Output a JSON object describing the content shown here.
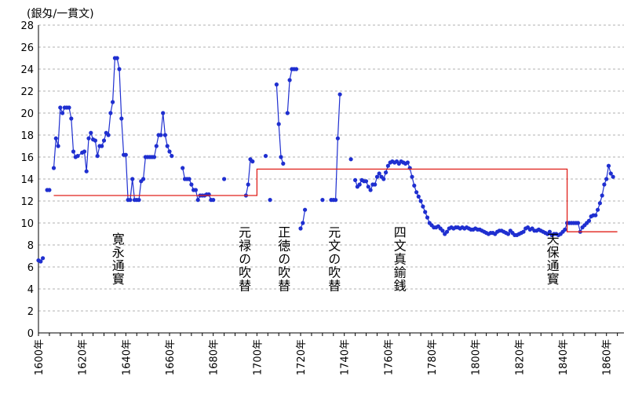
{
  "chart_data": {
    "type": "line",
    "title": "",
    "xlabel": "",
    "ylabel": "(銀匁/一貫文)",
    "xlim": [
      1600,
      1868
    ],
    "ylim": [
      0,
      28
    ],
    "yticks": [
      0,
      2,
      4,
      6,
      8,
      10,
      12,
      14,
      16,
      18,
      20,
      22,
      24,
      26,
      28
    ],
    "xticks": [
      "1600年",
      "1620年",
      "1640年",
      "1660年",
      "1680年",
      "1700年",
      "1720年",
      "1740年",
      "1760年",
      "1780年",
      "1800年",
      "1820年",
      "1840年",
      "1860年"
    ],
    "grid": true,
    "colors": {
      "market": "#1f2fd0",
      "official": "#e0201a",
      "grid": "#b0b0b0"
    },
    "series": [
      {
        "style": "line-markers",
        "color": "#1f2fd0",
        "segments": [
          [
            [
              1600,
              6.6
            ],
            [
              1601,
              6.5
            ],
            [
              1602,
              6.8
            ]
          ],
          [
            [
              1604,
              13.0
            ],
            [
              1605,
              13.0
            ]
          ],
          [
            [
              1607,
              15.0
            ],
            [
              1608,
              17.7
            ],
            [
              1609,
              17.0
            ],
            [
              1610,
              20.5
            ],
            [
              1611,
              20.0
            ],
            [
              1612,
              20.5
            ],
            [
              1613,
              20.5
            ],
            [
              1614,
              20.5
            ],
            [
              1615,
              19.5
            ],
            [
              1616,
              16.5
            ],
            [
              1617,
              16.0
            ],
            [
              1618,
              16.1
            ],
            [
              1620,
              16.4
            ],
            [
              1621,
              16.5
            ],
            [
              1622,
              14.7
            ],
            [
              1623,
              17.7
            ],
            [
              1624,
              18.2
            ],
            [
              1625,
              17.6
            ],
            [
              1626,
              17.5
            ],
            [
              1627,
              16.1
            ],
            [
              1628,
              17.0
            ],
            [
              1629,
              17.0
            ],
            [
              1630,
              17.5
            ],
            [
              1631,
              18.2
            ],
            [
              1632,
              18.0
            ],
            [
              1633,
              20.0
            ],
            [
              1634,
              21.0
            ],
            [
              1635,
              25.0
            ],
            [
              1636,
              25.0
            ],
            [
              1637,
              24.0
            ],
            [
              1638,
              19.5
            ],
            [
              1639,
              16.2
            ],
            [
              1640,
              16.2
            ],
            [
              1641,
              12.1
            ],
            [
              1642,
              12.1
            ],
            [
              1643,
              14.0
            ],
            [
              1644,
              12.1
            ],
            [
              1645,
              12.1
            ],
            [
              1646,
              12.1
            ],
            [
              1647,
              13.8
            ],
            [
              1648,
              14.0
            ],
            [
              1649,
              16.0
            ],
            [
              1650,
              16.0
            ],
            [
              1651,
              16.0
            ],
            [
              1652,
              16.0
            ],
            [
              1653,
              16.0
            ],
            [
              1654,
              17.0
            ],
            [
              1655,
              18.0
            ],
            [
              1656,
              18.0
            ],
            [
              1657,
              20.0
            ],
            [
              1658,
              18.0
            ],
            [
              1659,
              17.0
            ],
            [
              1660,
              16.5
            ],
            [
              1661,
              16.1
            ]
          ],
          [
            [
              1666,
              15.0
            ],
            [
              1667,
              14.0
            ],
            [
              1668,
              14.0
            ],
            [
              1669,
              14.0
            ],
            [
              1670,
              13.5
            ],
            [
              1671,
              13.0
            ],
            [
              1672,
              13.0
            ],
            [
              1673,
              12.1
            ],
            [
              1674,
              12.5
            ],
            [
              1675,
              12.5
            ],
            [
              1676,
              12.5
            ],
            [
              1677,
              12.6
            ],
            [
              1678,
              12.6
            ],
            [
              1679,
              12.1
            ],
            [
              1680,
              12.1
            ]
          ],
          [
            [
              1685,
              14.0
            ]
          ],
          [
            [
              1695,
              12.5
            ],
            [
              1696,
              13.5
            ],
            [
              1697,
              15.8
            ],
            [
              1698,
              15.6
            ]
          ],
          [
            [
              1704,
              16.1
            ]
          ],
          [
            [
              1706,
              12.1
            ]
          ],
          [
            [
              1709,
              22.6
            ],
            [
              1710,
              19.0
            ],
            [
              1711,
              16.0
            ],
            [
              1712,
              15.4
            ]
          ],
          [
            [
              1714,
              20.0
            ],
            [
              1715,
              23.0
            ],
            [
              1716,
              24.0
            ],
            [
              1717,
              24.0
            ],
            [
              1718,
              24.0
            ]
          ],
          [
            [
              1720,
              9.5
            ],
            [
              1721,
              10.0
            ],
            [
              1722,
              11.2
            ]
          ],
          [
            [
              1730,
              12.1
            ]
          ],
          [
            [
              1734,
              12.1
            ],
            [
              1735,
              12.1
            ],
            [
              1736,
              12.1
            ],
            [
              1737,
              17.7
            ],
            [
              1738,
              21.7
            ]
          ],
          [
            [
              1743,
              15.8
            ]
          ],
          [
            [
              1745,
              13.9
            ],
            [
              1746,
              13.3
            ],
            [
              1747,
              13.5
            ],
            [
              1748,
              13.9
            ],
            [
              1749,
              13.8
            ],
            [
              1750,
              13.8
            ],
            [
              1751,
              13.3
            ],
            [
              1752,
              13.0
            ],
            [
              1753,
              13.5
            ],
            [
              1754,
              13.5
            ],
            [
              1755,
              14.2
            ],
            [
              1756,
              14.5
            ],
            [
              1757,
              14.2
            ],
            [
              1758,
              14.0
            ],
            [
              1759,
              14.6
            ],
            [
              1760,
              15.2
            ],
            [
              1761,
              15.5
            ],
            [
              1762,
              15.6
            ],
            [
              1763,
              15.5
            ],
            [
              1764,
              15.6
            ],
            [
              1765,
              15.4
            ],
            [
              1766,
              15.6
            ],
            [
              1767,
              15.5
            ],
            [
              1768,
              15.4
            ],
            [
              1769,
              15.5
            ],
            [
              1770,
              15.0
            ],
            [
              1771,
              14.2
            ],
            [
              1772,
              13.4
            ],
            [
              1773,
              12.8
            ],
            [
              1774,
              12.4
            ],
            [
              1775,
              12.0
            ],
            [
              1776,
              11.5
            ],
            [
              1777,
              11.0
            ],
            [
              1778,
              10.5
            ],
            [
              1779,
              10.0
            ],
            [
              1780,
              9.8
            ],
            [
              1781,
              9.6
            ],
            [
              1782,
              9.6
            ],
            [
              1783,
              9.7
            ],
            [
              1784,
              9.5
            ],
            [
              1785,
              9.3
            ],
            [
              1786,
              9.0
            ],
            [
              1787,
              9.2
            ],
            [
              1788,
              9.5
            ],
            [
              1789,
              9.6
            ],
            [
              1790,
              9.5
            ],
            [
              1791,
              9.6
            ],
            [
              1792,
              9.6
            ],
            [
              1793,
              9.5
            ],
            [
              1794,
              9.6
            ],
            [
              1795,
              9.5
            ],
            [
              1796,
              9.6
            ],
            [
              1797,
              9.5
            ],
            [
              1798,
              9.4
            ],
            [
              1799,
              9.4
            ],
            [
              1800,
              9.5
            ],
            [
              1801,
              9.4
            ],
            [
              1802,
              9.4
            ],
            [
              1803,
              9.3
            ],
            [
              1804,
              9.2
            ],
            [
              1805,
              9.1
            ],
            [
              1806,
              9.0
            ],
            [
              1807,
              9.1
            ],
            [
              1808,
              9.1
            ],
            [
              1809,
              9.0
            ],
            [
              1810,
              9.2
            ],
            [
              1811,
              9.3
            ],
            [
              1812,
              9.3
            ],
            [
              1813,
              9.2
            ],
            [
              1814,
              9.1
            ],
            [
              1815,
              9.0
            ],
            [
              1816,
              9.3
            ],
            [
              1817,
              9.1
            ],
            [
              1818,
              8.9
            ],
            [
              1819,
              8.9
            ],
            [
              1820,
              9.0
            ],
            [
              1821,
              9.1
            ],
            [
              1822,
              9.2
            ],
            [
              1823,
              9.5
            ],
            [
              1824,
              9.6
            ],
            [
              1825,
              9.4
            ],
            [
              1826,
              9.5
            ],
            [
              1827,
              9.3
            ],
            [
              1828,
              9.3
            ],
            [
              1829,
              9.4
            ],
            [
              1830,
              9.3
            ],
            [
              1831,
              9.2
            ],
            [
              1832,
              9.1
            ],
            [
              1833,
              9.0
            ],
            [
              1834,
              9.2
            ],
            [
              1835,
              8.9
            ],
            [
              1836,
              9.0
            ],
            [
              1837,
              9.0
            ],
            [
              1838,
              8.9
            ],
            [
              1839,
              9.0
            ],
            [
              1840,
              9.2
            ],
            [
              1841,
              9.4
            ],
            [
              1842,
              10.0
            ],
            [
              1843,
              10.0
            ],
            [
              1844,
              10.0
            ],
            [
              1845,
              10.0
            ],
            [
              1846,
              10.0
            ],
            [
              1847,
              10.0
            ],
            [
              1848,
              9.2
            ],
            [
              1849,
              9.6
            ],
            [
              1850,
              9.8
            ],
            [
              1851,
              10.0
            ],
            [
              1852,
              10.2
            ],
            [
              1853,
              10.6
            ],
            [
              1854,
              10.7
            ],
            [
              1855,
              10.7
            ],
            [
              1856,
              11.2
            ],
            [
              1857,
              11.8
            ],
            [
              1858,
              12.5
            ],
            [
              1859,
              13.5
            ],
            [
              1860,
              14.0
            ],
            [
              1861,
              15.2
            ],
            [
              1862,
              14.5
            ],
            [
              1863,
              14.2
            ]
          ]
        ]
      },
      {
        "style": "step",
        "color": "#e0201a",
        "points": [
          [
            1607,
            12.5
          ],
          [
            1700,
            12.5
          ],
          [
            1700,
            14.9
          ],
          [
            1842,
            14.9
          ],
          [
            1842,
            9.2
          ],
          [
            1865,
            9.2
          ]
        ]
      }
    ],
    "annotations": [
      {
        "text": "寛永通寳",
        "x": 1636
      },
      {
        "text": "元禄の吹替",
        "x": 1694
      },
      {
        "text": "正徳の吹替",
        "x": 1712
      },
      {
        "text": "元文の吹替",
        "x": 1735
      },
      {
        "text": "四文真鍮銭",
        "x": 1765
      },
      {
        "text": "天保通寳",
        "x": 1835
      }
    ]
  }
}
